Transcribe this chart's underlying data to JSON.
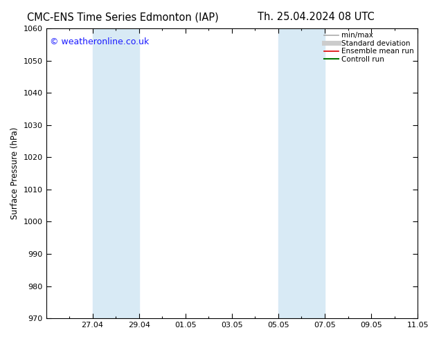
{
  "title_left": "CMC-ENS Time Series Edmonton (IAP)",
  "title_right": "Th. 25.04.2024 08 UTC",
  "ylabel": "Surface Pressure (hPa)",
  "ylim": [
    970,
    1060
  ],
  "yticks": [
    970,
    980,
    990,
    1000,
    1010,
    1020,
    1030,
    1040,
    1050,
    1060
  ],
  "xlim": [
    0.0,
    16.0
  ],
  "xtick_labels": [
    "27.04",
    "29.04",
    "01.05",
    "03.05",
    "05.05",
    "07.05",
    "09.05",
    "11.05"
  ],
  "xtick_positions": [
    2,
    4,
    6,
    8,
    10,
    12,
    14,
    16
  ],
  "shaded_bands": [
    {
      "xmin": 2.0,
      "xmax": 4.0
    },
    {
      "xmin": 10.0,
      "xmax": 12.0
    }
  ],
  "shaded_color": "#d8eaf5",
  "watermark": "© weatheronline.co.uk",
  "watermark_color": "#1a1aff",
  "legend_items": [
    {
      "label": "min/max",
      "color": "#aaaaaa",
      "lw": 1.2
    },
    {
      "label": "Standard deviation",
      "color": "#cccccc",
      "lw": 5
    },
    {
      "label": "Ensemble mean run",
      "color": "#dd0000",
      "lw": 1.2
    },
    {
      "label": "Controll run",
      "color": "#007700",
      "lw": 1.5
    }
  ],
  "background_color": "#ffffff",
  "plot_bg_color": "#ffffff",
  "tick_color": "#000000",
  "border_color": "#000000",
  "title_fontsize": 10.5,
  "axis_label_fontsize": 8.5,
  "tick_fontsize": 8,
  "legend_fontsize": 7.5,
  "watermark_fontsize": 9
}
